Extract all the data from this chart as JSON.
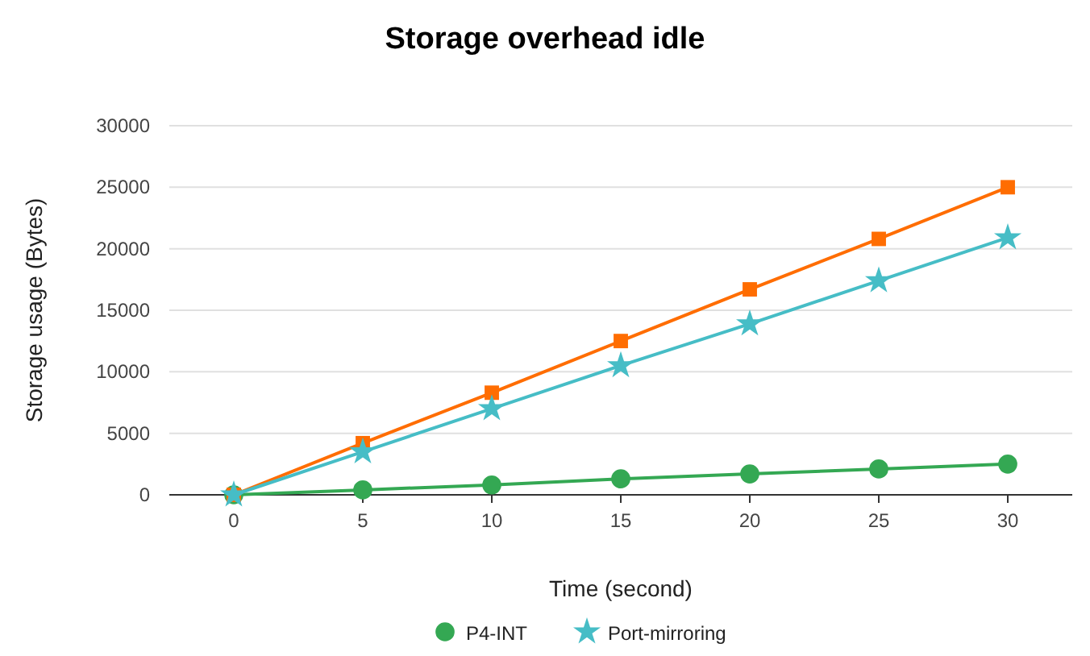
{
  "chart_data": {
    "type": "line",
    "title": "Storage overhead idle",
    "xlabel": "Time (second)",
    "ylabel": "Storage usage (Bytes)",
    "x": [
      0,
      5,
      10,
      15,
      20,
      25,
      30
    ],
    "xlim": [
      -2.5,
      32.5
    ],
    "xticks": [
      0,
      5,
      10,
      15,
      20,
      25,
      30
    ],
    "ylim": [
      0,
      30000
    ],
    "yticks": [
      0,
      5000,
      10000,
      15000,
      20000,
      25000,
      30000
    ],
    "grid": "y",
    "legend": "bottom",
    "line_style": "solid",
    "series": [
      {
        "name": "P4-INT",
        "color": "#34a853",
        "marker": "circle",
        "values": [
          0,
          400,
          800,
          1300,
          1700,
          2100,
          2500
        ]
      },
      {
        "color": "#ff6d01",
        "marker": "square",
        "values": [
          0,
          4200,
          8300,
          12500,
          16700,
          20800,
          25000
        ]
      },
      {
        "name": "Port-mirroring",
        "color": "#46bdc6",
        "marker": "star",
        "values": [
          0,
          3500,
          7000,
          10500,
          13900,
          17400,
          20900
        ]
      }
    ]
  }
}
